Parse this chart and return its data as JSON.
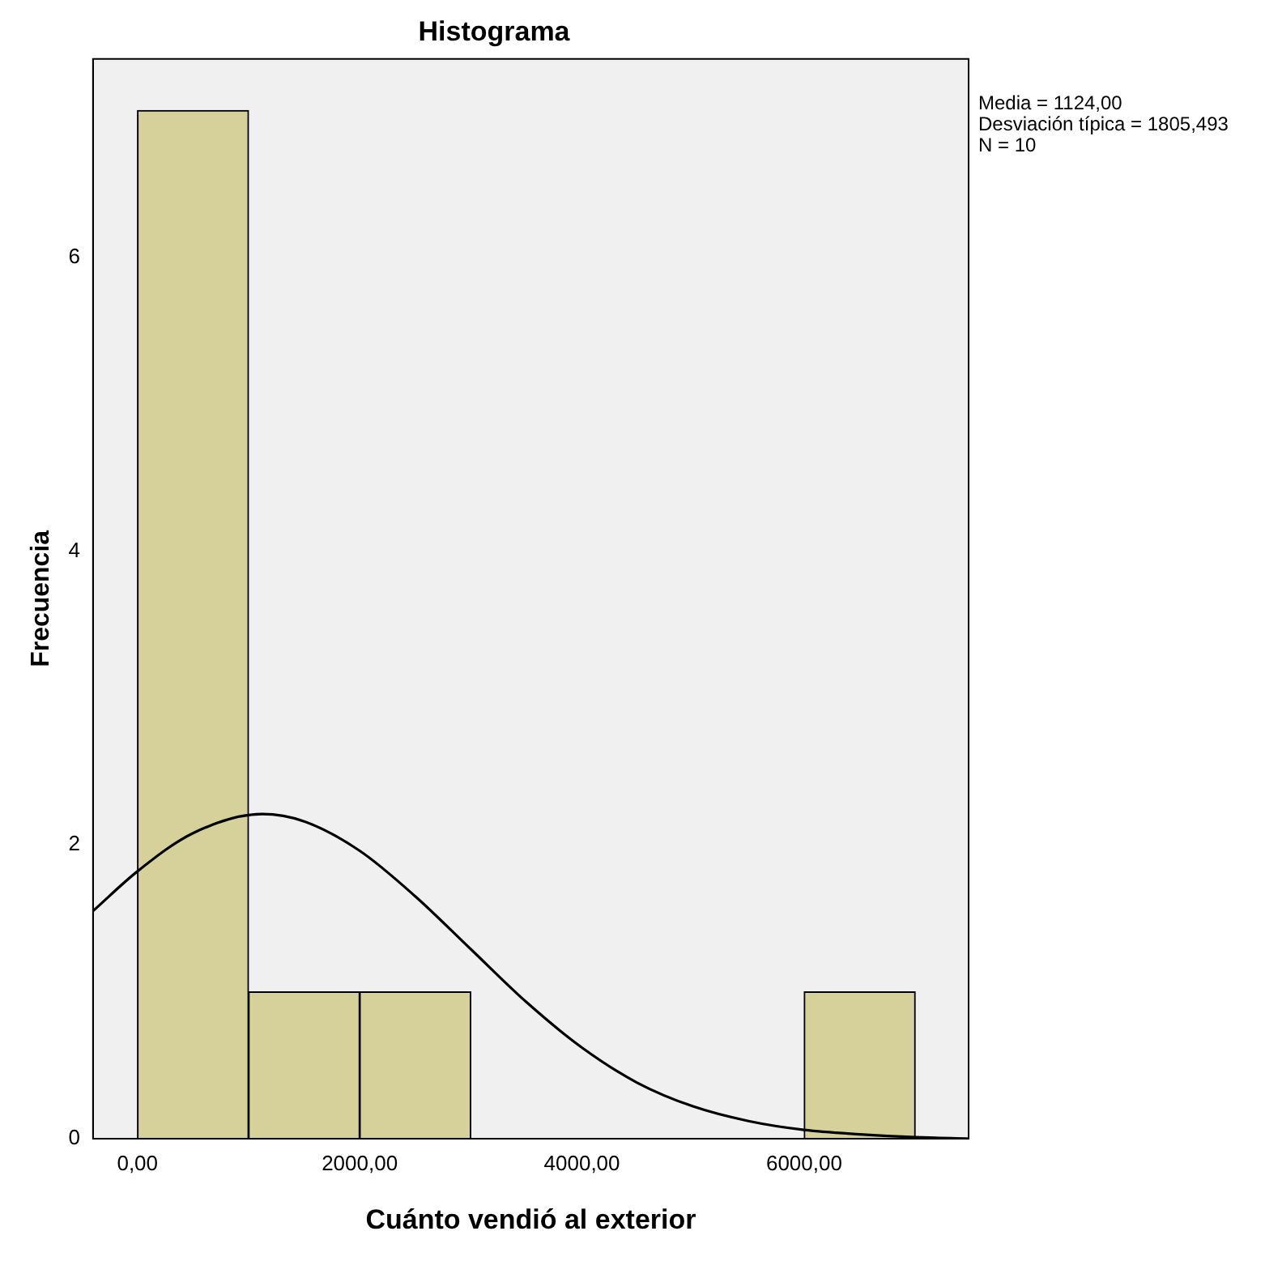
{
  "chart_data": {
    "type": "histogram",
    "title": "Histograma",
    "xlabel": "Cuánto vendió al exterior",
    "ylabel": "Frecuencia",
    "bins": [
      0,
      1000,
      2000,
      3000,
      4000,
      5000,
      6000,
      7000
    ],
    "values": [
      7,
      1,
      1,
      0,
      0,
      0,
      1
    ],
    "color": "#d6d09b",
    "series": [
      {
        "type": "line",
        "color": "#000000",
        "x": [
          -400,
          0,
          500,
          1124,
          1500,
          2000,
          2500,
          3000,
          3500,
          4000,
          4500,
          5000,
          5500,
          6000,
          6500,
          7000,
          7480
        ],
        "values": [
          1.55,
          1.82,
          2.08,
          2.21,
          2.16,
          1.96,
          1.65,
          1.29,
          0.93,
          0.62,
          0.38,
          0.22,
          0.12,
          0.06,
          0.03,
          0.01,
          0
        ]
      }
    ],
    "xlim": [
      -400,
      7480
    ],
    "xticks": [
      {
        "value": 0,
        "label": "0,00"
      },
      {
        "value": 2000,
        "label": "2000,00"
      },
      {
        "value": 4000,
        "label": "4000,00"
      },
      {
        "value": 6000,
        "label": "6000,00"
      }
    ],
    "ylim": [
      0,
      7.35
    ],
    "yticks": [
      0,
      2,
      4,
      6
    ],
    "grid": false,
    "legend": false,
    "annotations": [
      "Media = 1124,00",
      "Desviación típica = 1805,493",
      "N = 10"
    ]
  }
}
